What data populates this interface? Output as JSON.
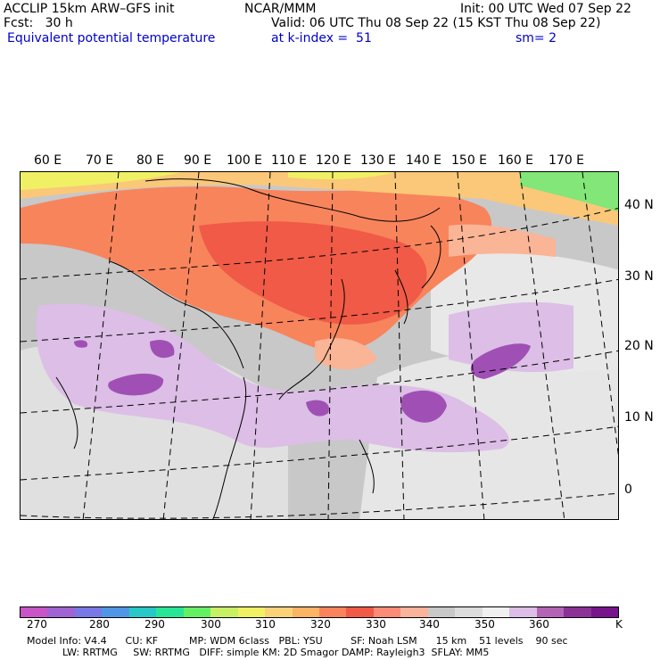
{
  "header": {
    "line1_left": "ACCLIP 15km ARW–GFS init",
    "line1_center": "NCAR/MMM",
    "line1_right": "Init: 00 UTC Wed 07 Sep 22",
    "line2_left": "Fcst:   30 h",
    "line2_right": "Valid: 06 UTC Thu 08 Sep 22 (15 KST Thu 08 Sep 22)",
    "line3_left": "Equivalent potential temperature",
    "line3_center": "at k-index =  51",
    "line3_right": "sm= 2"
  },
  "map": {
    "longitude_labels": [
      "60 E",
      "70 E",
      "80 E",
      "90 E",
      "100 E",
      "110 E",
      "120 E",
      "130 E",
      "140 E",
      "150 E",
      "160 E",
      "170 E"
    ],
    "latitude_labels": [
      "40 N",
      "30 N",
      "20 N",
      "10 N",
      "0"
    ],
    "field_colors": {
      "very_warm": "#f05a46",
      "warm": "#f8845c",
      "mild": "#fab496",
      "cool": "#c8c8c8",
      "light": "#e6e6e6",
      "lilac": "#dcbee6",
      "purple": "#a050b4",
      "yellow": "#f0f064",
      "green": "#82e678",
      "orange": "#fac878"
    }
  },
  "colorbar": {
    "colors": [
      "#c855c8",
      "#a064d2",
      "#7878e6",
      "#5096e6",
      "#28c8c8",
      "#28e696",
      "#64f064",
      "#c8f064",
      "#f0f064",
      "#fad278",
      "#fab464",
      "#f8845c",
      "#f05a46",
      "#fa8c78",
      "#fab49b",
      "#c8c8c8",
      "#dcdcdc",
      "#f0f0f0",
      "#dcbee6",
      "#b464b4",
      "#8c3296",
      "#78148c"
    ],
    "labels": [
      "270",
      "280",
      "290",
      "300",
      "310",
      "320",
      "330",
      "340",
      "350",
      "360"
    ],
    "unit": "K"
  },
  "footer": {
    "line1": "Model Info: V4.4      CU: KF          MP: WDM 6class   PBL: YSU         SF: Noah LSM      15 km    51 levels    90 sec",
    "line2": "LW: RRTMG     SW: RRTMG   DIFF: simple KM: 2D Smagor DAMP: Rayleigh3  SFLAY: MM5"
  }
}
